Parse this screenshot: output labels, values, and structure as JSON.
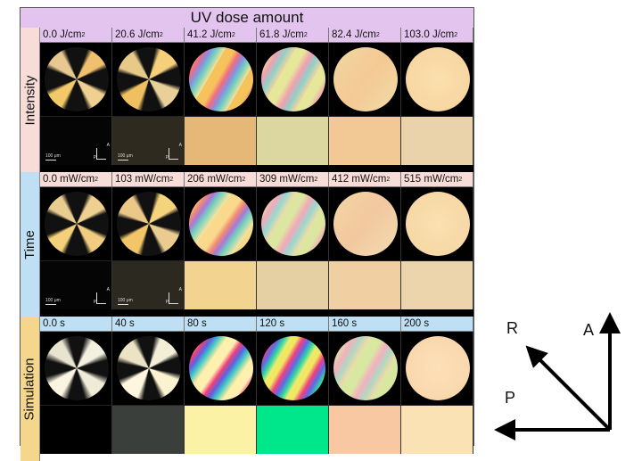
{
  "header": "UV dose amount",
  "rows": [
    {
      "name": "Intensity",
      "label_bg": "#f8dcd8",
      "labels": [
        "0.0 J/cm",
        "20.6 J/cm",
        "41.2 J/cm",
        "61.8 J/cm",
        "82.4 J/cm",
        "103.0 J/cm"
      ],
      "label_sup": "2",
      "label_bg_strip": "#e2c4ee"
    },
    {
      "name": "Time",
      "label_bg": "#bfe0f4",
      "labels": [
        "0.0 mW/cm",
        "103 mW/cm",
        "206 mW/cm",
        "309 mW/cm",
        "412 mW/cm",
        "515 mW/cm"
      ],
      "label_sup": "2",
      "label_bg_strip": "#f8dcd8"
    },
    {
      "name": "Simulation",
      "label_bg": "#f4d68c",
      "labels": [
        "0.0 s",
        "40 s",
        "80 s",
        "120 s",
        "160 s",
        "200 s"
      ],
      "label_sup": "",
      "label_bg_strip": "#bfe0f4"
    }
  ],
  "micro_scale": "100 μm",
  "micro_axis_p": "P",
  "micro_axis_a": "A",
  "axes": {
    "r": "R",
    "a": "A",
    "p": "P"
  },
  "sim_swatches": [
    "#000000",
    "#3a3f3c",
    "#fbf2a6",
    "#00e68a",
    "#f8c8a2",
    "#fae2b4"
  ]
}
